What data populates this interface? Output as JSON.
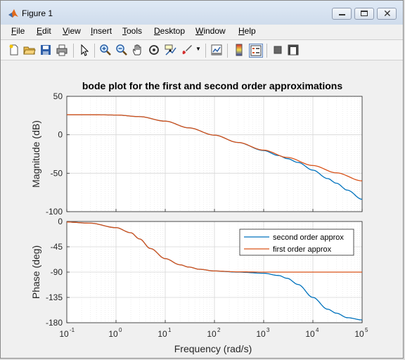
{
  "window": {
    "title": "Figure 1",
    "controls": [
      "minimize",
      "maximize",
      "close"
    ]
  },
  "menu": [
    {
      "label": "File",
      "underline": "F",
      "rest": "ile"
    },
    {
      "label": "Edit",
      "underline": "E",
      "rest": "dit"
    },
    {
      "label": "View",
      "underline": "V",
      "rest": "iew"
    },
    {
      "label": "Insert",
      "underline": "I",
      "rest": "nsert"
    },
    {
      "label": "Tools",
      "underline": "T",
      "rest": "ools"
    },
    {
      "label": "Desktop",
      "underline": "D",
      "rest": "esktop"
    },
    {
      "label": "Window",
      "underline": "W",
      "rest": "indow"
    },
    {
      "label": "Help",
      "underline": "H",
      "rest": "elp"
    }
  ],
  "toolbar": [
    "new-figure-icon",
    "open-file-icon",
    "save-icon",
    "print-icon",
    "pointer-icon",
    "zoom-in-icon",
    "zoom-out-icon",
    "pan-icon",
    "rotate-3d-icon",
    "data-cursor-icon",
    "brush-icon",
    "dropdown-arrow-icon",
    "link-plot-icon",
    "colorbar-icon",
    "legend-icon",
    "hide-plot-tools-icon",
    "show-plot-tools-icon"
  ],
  "chart_data": {
    "title": "bode plot for the first and second order approximations",
    "xlabel": "Frequency  (rad/s)",
    "x_scale": "log",
    "xlim": [
      0.1,
      100000
    ],
    "x_ticks": [
      "10",
      "10",
      "10",
      "10",
      "10",
      "10",
      "10"
    ],
    "x_tick_exponents": [
      "-1",
      "0",
      "1",
      "2",
      "3",
      "4",
      "5"
    ],
    "grid": true,
    "panels": [
      {
        "type": "line",
        "ylabel": "Magnitude (dB)",
        "ylim": [
          -100,
          50
        ],
        "y_ticks": [
          "50",
          "0",
          "-50",
          "-100"
        ],
        "series": [
          {
            "name": "second order approx",
            "color": "#0072bd",
            "x": [
              0.1,
              0.3,
              1,
              3,
              10,
              30,
              100,
              300,
              1000,
              2000,
              3000,
              5000,
              10000,
              20000,
              30000,
              50000,
              100000
            ],
            "values": [
              26,
              26,
              25.7,
              23.6,
              17.7,
              9,
              -0.5,
              -10,
              -20.5,
              -27,
              -31,
              -36,
              -46,
              -57,
              -63,
              -72,
              -84
            ]
          },
          {
            "name": "first order approx",
            "color": "#d95319",
            "x": [
              0.1,
              0.3,
              1,
              3,
              10,
              30,
              100,
              300,
              1000,
              3000,
              10000,
              30000,
              100000
            ],
            "values": [
              26,
              26,
              25.7,
              23.6,
              17.7,
              9,
              -0.5,
              -10,
              -20,
              -29.5,
              -40,
              -49.5,
              -60
            ]
          }
        ]
      },
      {
        "type": "line",
        "ylabel": "Phase (deg)",
        "ylim": [
          -180,
          0
        ],
        "y_ticks": [
          "0",
          "-45",
          "-90",
          "-135",
          "-180"
        ],
        "legend": {
          "placement": "top-right",
          "entries": [
            "second order approx",
            "first order approx"
          ]
        },
        "series": [
          {
            "name": "second order approx",
            "color": "#0072bd",
            "x": [
              0.1,
              0.3,
              1,
              2,
              3,
              5,
              10,
              20,
              30,
              50,
              100,
              300,
              1000,
              2000,
              3000,
              5000,
              10000,
              20000,
              30000,
              50000,
              100000
            ],
            "values": [
              -1,
              -3,
              -11,
              -20,
              -31,
              -48,
              -66,
              -77,
              -81,
              -85,
              -88,
              -90,
              -92,
              -96,
              -101,
              -112,
              -135,
              -156,
              -163,
              -171,
              -175
            ]
          },
          {
            "name": "first order approx",
            "color": "#d95319",
            "x": [
              0.1,
              0.3,
              1,
              2,
              3,
              5,
              10,
              20,
              30,
              50,
              100,
              300,
              1000,
              3000,
              10000,
              100000
            ],
            "values": [
              -1,
              -3,
              -11,
              -20,
              -31,
              -48,
              -66,
              -77,
              -81,
              -85,
              -88,
              -89.5,
              -90,
              -90,
              -90,
              -90
            ]
          }
        ]
      }
    ]
  }
}
